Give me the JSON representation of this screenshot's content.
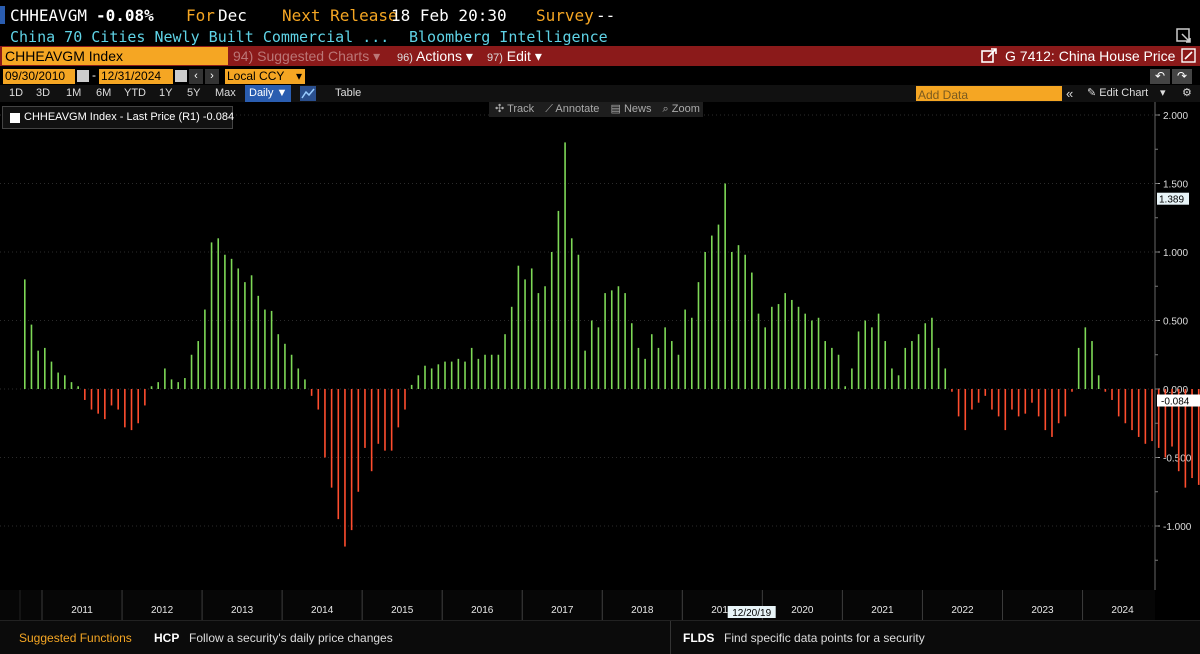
{
  "header": {
    "ticker": "CHHEAVGM",
    "change": "-0.08%",
    "for_label": "For",
    "for_value": "Dec",
    "next_release_label": "Next Release",
    "next_release_value": "18 Feb 20:30",
    "survey_label": "Survey",
    "survey_value": "--",
    "description": "China 70 Cities Newly Built Commercial ...",
    "source": "Bloomberg Intelligence"
  },
  "toolbar": {
    "security": "CHHEAVGM Index",
    "suggested_num": "94)",
    "suggested_label": "Suggested Charts",
    "actions_num": "96)",
    "actions_label": "Actions",
    "edit_num": "97)",
    "edit_label": "Edit",
    "chart_title": "G 7412: China House Price"
  },
  "range": {
    "start_date": "09/30/2010",
    "end_date": "12/31/2024",
    "currency": "Local CCY"
  },
  "periods": [
    "1D",
    "3D",
    "1M",
    "6M",
    "YTD",
    "1Y",
    "5Y",
    "Max"
  ],
  "frequency": "Daily",
  "table_label": "Table",
  "add_data_placeholder": "Add Data",
  "edit_chart_label": "Edit Chart",
  "chart_tools": [
    "Track",
    "Annotate",
    "News",
    "Zoom"
  ],
  "legend": {
    "label": "CHHEAVGM Index - Last Price (R1) -0.084"
  },
  "chart_data": {
    "type": "bar",
    "series_label": "CHHEAVGM Index - Last Price",
    "last_value": -0.084,
    "last_value_label": "-0.084",
    "hover_value_label": "1.389",
    "hover_date_label": "12/20/19",
    "ylim": [
      -1.3,
      2.0
    ],
    "y_ticks": [
      2.0,
      1.5,
      1.0,
      0.5,
      0.0,
      -0.5,
      -1.0
    ],
    "y_tick_labels": [
      "2.000",
      "1.500",
      "1.000",
      "0.500",
      "0.000",
      "-0.500",
      "-1.000"
    ],
    "year_labels": [
      "2011",
      "2012",
      "2013",
      "2014",
      "2015",
      "2016",
      "2017",
      "2018",
      "2019",
      "2020",
      "2021",
      "2022",
      "2023",
      "2024"
    ],
    "first_month": "2010-10",
    "positive_color": "#7ed957",
    "negative_color": "#ff4d2e",
    "values": [
      0.8,
      0.47,
      0.28,
      0.3,
      0.2,
      0.12,
      0.1,
      0.05,
      0.02,
      -0.08,
      -0.15,
      -0.18,
      -0.22,
      -0.12,
      -0.15,
      -0.28,
      -0.3,
      -0.25,
      -0.12,
      0.02,
      0.05,
      0.15,
      0.07,
      0.05,
      0.08,
      0.25,
      0.35,
      0.58,
      1.07,
      1.1,
      0.98,
      0.95,
      0.88,
      0.78,
      0.83,
      0.68,
      0.58,
      0.57,
      0.4,
      0.33,
      0.25,
      0.15,
      0.07,
      -0.05,
      -0.15,
      -0.5,
      -0.72,
      -0.95,
      -1.15,
      -1.03,
      -0.75,
      -0.43,
      -0.6,
      -0.4,
      -0.45,
      -0.45,
      -0.28,
      -0.15,
      0.03,
      0.1,
      0.17,
      0.15,
      0.18,
      0.2,
      0.2,
      0.22,
      0.2,
      0.3,
      0.22,
      0.25,
      0.25,
      0.25,
      0.4,
      0.6,
      0.9,
      0.8,
      0.88,
      0.7,
      0.75,
      1.0,
      1.3,
      1.8,
      1.1,
      0.98,
      0.28,
      0.5,
      0.45,
      0.7,
      0.72,
      0.75,
      0.7,
      0.48,
      0.3,
      0.22,
      0.4,
      0.3,
      0.45,
      0.35,
      0.25,
      0.58,
      0.52,
      0.78,
      1.0,
      1.12,
      1.2,
      1.5,
      1.0,
      1.05,
      0.98,
      0.85,
      0.55,
      0.45,
      0.6,
      0.62,
      0.7,
      0.65,
      0.6,
      0.55,
      0.5,
      0.52,
      0.35,
      0.3,
      0.25,
      0.02,
      0.15,
      0.42,
      0.5,
      0.45,
      0.55,
      0.35,
      0.15,
      0.1,
      0.3,
      0.35,
      0.4,
      0.48,
      0.52,
      0.3,
      0.15,
      -0.02,
      -0.2,
      -0.3,
      -0.15,
      -0.1,
      -0.05,
      -0.15,
      -0.2,
      -0.3,
      -0.15,
      -0.2,
      -0.18,
      -0.1,
      -0.2,
      -0.3,
      -0.35,
      -0.25,
      -0.2,
      -0.02,
      0.3,
      0.45,
      0.35,
      0.1,
      -0.02,
      -0.08,
      -0.2,
      -0.25,
      -0.3,
      -0.35,
      -0.4,
      -0.38,
      -0.43,
      -0.5,
      -0.42,
      -0.6,
      -0.72,
      -0.65,
      -0.7,
      -0.72,
      -0.75,
      -0.5,
      -0.3,
      -0.2,
      -0.084
    ]
  },
  "footer": {
    "suggested_label": "Suggested Functions",
    "fn1_code": "HCP",
    "fn1_desc": "Follow a security's daily price changes",
    "fn2_code": "FLDS",
    "fn2_desc": "Find specific data points for a security"
  },
  "colors": {
    "accent": "#f5a623",
    "toolbar_red": "#8b1a1a",
    "cyan": "#5fd3e6"
  }
}
